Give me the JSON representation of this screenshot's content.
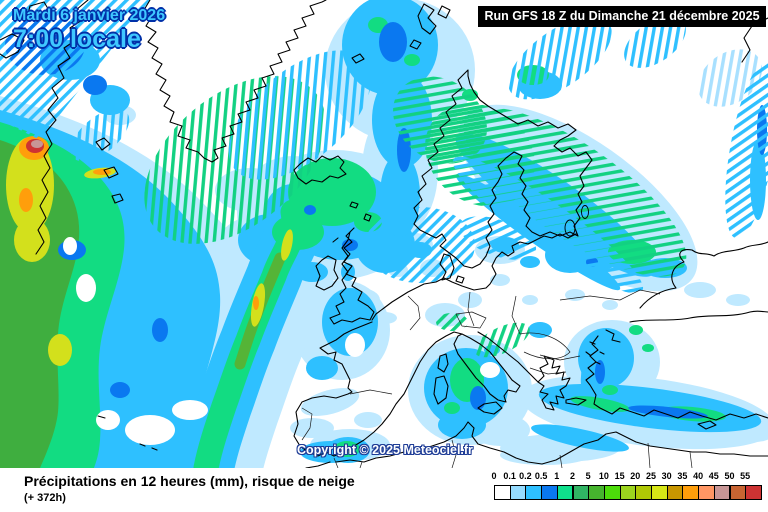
{
  "header": {
    "date_line1": "Mardi 6 janvier 2026",
    "date_line2": "7:00 locale",
    "run_label": "Run GFS 18 Z du Dimanche 21 décembre 2025"
  },
  "map": {
    "copyright": "Copyright © 2025 Meteociel.fr"
  },
  "footer": {
    "title": "Précipitations en 12 heures (mm), risque de neige",
    "forecast_offset": "(+ 372h)"
  },
  "legend": {
    "unit_labels": [
      "0",
      "0.1",
      "0.2",
      "0.5",
      "1",
      "2",
      "5",
      "10",
      "15",
      "20",
      "25",
      "30",
      "35",
      "40",
      "45",
      "50",
      "55"
    ],
    "colors": [
      "#FFFFFF",
      "#96DCFF",
      "#2EC0FF",
      "#0A78F0",
      "#0FE08C",
      "#30B464",
      "#46B42E",
      "#4CDC0A",
      "#9CD41E",
      "#AFC805",
      "#D7E616",
      "#C89600",
      "#FF9E0B",
      "#FF9664",
      "#C89696",
      "#C86432",
      "#CD3333"
    ]
  },
  "theme": {
    "date_text_color": "#3FC8FF",
    "date_outline_color": "#0030A8",
    "run_banner_bg": "#000000",
    "run_banner_text": "#FFFFFF",
    "copyright_color": "#FFFFFF",
    "copyright_outline": "#1E3C96"
  }
}
